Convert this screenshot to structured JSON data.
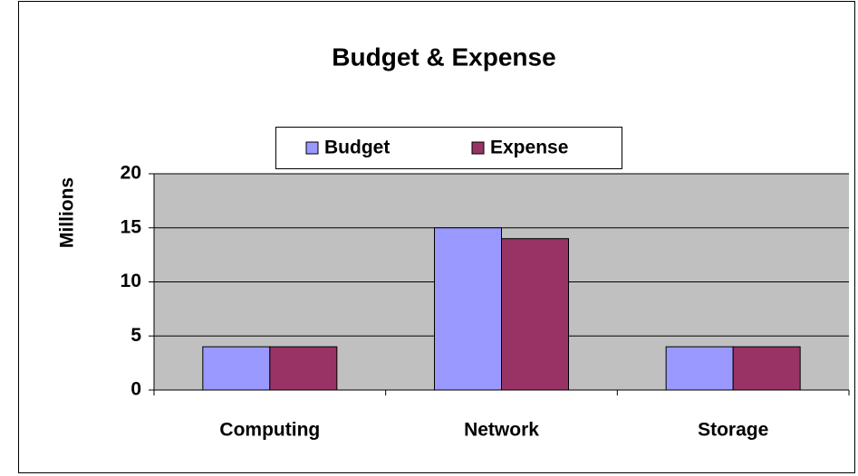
{
  "chart_data": {
    "type": "bar",
    "title": "Budget & Expense",
    "y_label": "Millions",
    "categories": [
      "Computing",
      "Network",
      "Storage"
    ],
    "series": [
      {
        "name": "Budget",
        "color": "#9999ff",
        "values": [
          4,
          15,
          4
        ]
      },
      {
        "name": "Expense",
        "color": "#993366",
        "values": [
          4,
          14,
          4
        ]
      }
    ],
    "ylim": [
      0,
      20
    ],
    "yticks": [
      0,
      5,
      10,
      15,
      20
    ],
    "grid": true,
    "legend": "top"
  }
}
